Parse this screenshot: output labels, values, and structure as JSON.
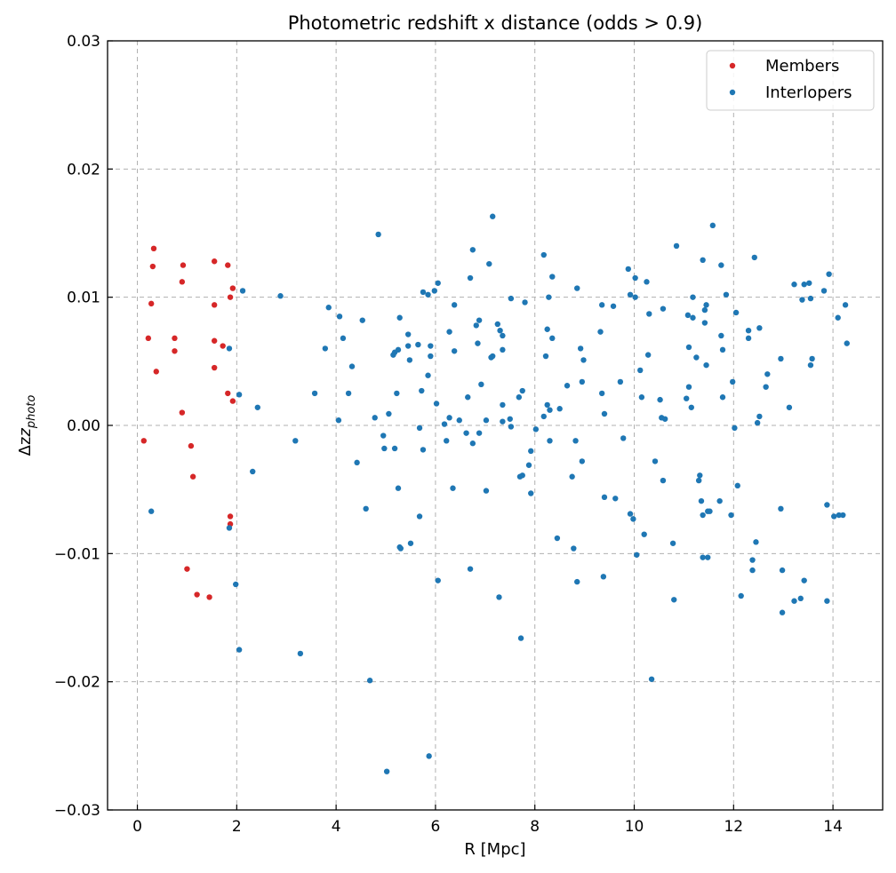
{
  "chart_data": {
    "type": "scatter",
    "title": "Photometric redshift x distance (odds > 0.9)",
    "xlabel": "R [Mpc]",
    "ylabel_main": "Δz",
    "ylabel_sub": "photo",
    "xlim": [
      -0.6,
      15.0
    ],
    "ylim": [
      -0.03,
      0.03
    ],
    "xticks": [
      0,
      2,
      4,
      6,
      8,
      10,
      12,
      14
    ],
    "xtick_labels": [
      "0",
      "2",
      "4",
      "6",
      "8",
      "10",
      "12",
      "14"
    ],
    "yticks": [
      -0.03,
      -0.02,
      -0.01,
      0.0,
      0.01,
      0.02,
      0.03
    ],
    "ytick_labels": [
      "−0.03",
      "−0.02",
      "−0.01",
      "0.00",
      "0.01",
      "0.02",
      "0.03"
    ],
    "grid": true,
    "legend_position": "top-right",
    "series": [
      {
        "name": "Members",
        "color": "#d62728",
        "points": [
          [
            0.13,
            -0.0012
          ],
          [
            0.22,
            0.0068
          ],
          [
            0.28,
            0.0095
          ],
          [
            0.31,
            0.0124
          ],
          [
            0.33,
            0.0138
          ],
          [
            0.38,
            0.0042
          ],
          [
            0.75,
            0.0068
          ],
          [
            0.75,
            0.0058
          ],
          [
            0.9,
            0.0112
          ],
          [
            0.92,
            0.0125
          ],
          [
            0.9,
            0.001
          ],
          [
            1.0,
            -0.0112
          ],
          [
            1.08,
            -0.0016
          ],
          [
            1.12,
            -0.004
          ],
          [
            1.2,
            -0.0132
          ],
          [
            1.45,
            -0.0134
          ],
          [
            1.55,
            0.0128
          ],
          [
            1.55,
            0.0094
          ],
          [
            1.55,
            0.0066
          ],
          [
            1.55,
            0.0045
          ],
          [
            1.72,
            0.0062
          ],
          [
            1.82,
            0.0125
          ],
          [
            1.82,
            0.0025
          ],
          [
            1.87,
            0.01
          ],
          [
            1.92,
            0.0107
          ],
          [
            1.92,
            0.0019
          ],
          [
            1.87,
            -0.0071
          ],
          [
            1.87,
            -0.0077
          ]
        ]
      },
      {
        "name": "Interlopers",
        "color": "#1f77b4",
        "points": [
          [
            0.28,
            -0.0067
          ],
          [
            1.85,
            0.006
          ],
          [
            1.85,
            -0.008
          ],
          [
            1.98,
            -0.0124
          ],
          [
            2.05,
            -0.0175
          ],
          [
            2.05,
            0.0024
          ],
          [
            2.12,
            0.0105
          ],
          [
            2.32,
            -0.0036
          ],
          [
            2.42,
            0.0014
          ],
          [
            2.88,
            0.0101
          ],
          [
            3.18,
            -0.0012
          ],
          [
            3.28,
            -0.0178
          ],
          [
            3.57,
            0.0025
          ],
          [
            3.78,
            0.006
          ],
          [
            3.85,
            0.0092
          ],
          [
            4.05,
            0.0004
          ],
          [
            4.07,
            0.0085
          ],
          [
            4.14,
            0.0068
          ],
          [
            4.25,
            0.0025
          ],
          [
            4.32,
            0.0046
          ],
          [
            4.42,
            -0.0029
          ],
          [
            4.53,
            0.0082
          ],
          [
            4.6,
            -0.0065
          ],
          [
            4.68,
            -0.0199
          ],
          [
            4.78,
            0.0006
          ],
          [
            4.85,
            0.0149
          ],
          [
            4.95,
            -0.0008
          ],
          [
            4.97,
            -0.0018
          ],
          [
            5.02,
            -0.027
          ],
          [
            5.06,
            0.0009
          ],
          [
            5.15,
            0.0055
          ],
          [
            5.18,
            0.0057
          ],
          [
            5.18,
            -0.0018
          ],
          [
            5.22,
            0.0025
          ],
          [
            5.25,
            0.0059
          ],
          [
            5.25,
            -0.0049
          ],
          [
            5.28,
            0.0084
          ],
          [
            5.28,
            -0.0095
          ],
          [
            5.3,
            -0.0096
          ],
          [
            5.45,
            0.0071
          ],
          [
            5.45,
            0.0062
          ],
          [
            5.48,
            0.0051
          ],
          [
            5.5,
            -0.0092
          ],
          [
            5.65,
            0.0063
          ],
          [
            5.68,
            -0.0002
          ],
          [
            5.68,
            -0.0071
          ],
          [
            5.72,
            0.0027
          ],
          [
            5.75,
            0.0104
          ],
          [
            5.75,
            -0.0019
          ],
          [
            5.85,
            0.0102
          ],
          [
            5.85,
            0.0039
          ],
          [
            5.87,
            -0.0258
          ],
          [
            5.9,
            0.0062
          ],
          [
            5.9,
            0.0054
          ],
          [
            5.98,
            0.0105
          ],
          [
            6.02,
            0.0017
          ],
          [
            6.05,
            0.0111
          ],
          [
            6.05,
            -0.0121
          ],
          [
            6.18,
            0.0001
          ],
          [
            6.22,
            -0.0012
          ],
          [
            6.28,
            0.0073
          ],
          [
            6.28,
            0.0006
          ],
          [
            6.35,
            -0.0049
          ],
          [
            6.38,
            0.0094
          ],
          [
            6.38,
            0.0058
          ],
          [
            6.48,
            0.0004
          ],
          [
            6.62,
            -0.0006
          ],
          [
            6.65,
            0.0022
          ],
          [
            6.7,
            0.0115
          ],
          [
            6.7,
            -0.0112
          ],
          [
            6.75,
            0.0137
          ],
          [
            6.75,
            -0.0014
          ],
          [
            6.82,
            0.0078
          ],
          [
            6.85,
            0.0064
          ],
          [
            6.88,
            0.0082
          ],
          [
            6.88,
            -0.0006
          ],
          [
            6.92,
            0.0032
          ],
          [
            7.02,
            0.0004
          ],
          [
            7.02,
            -0.0051
          ],
          [
            7.08,
            0.0126
          ],
          [
            7.12,
            0.0053
          ],
          [
            7.15,
            0.0054
          ],
          [
            7.15,
            0.0163
          ],
          [
            7.25,
            0.0079
          ],
          [
            7.28,
            -0.0134
          ],
          [
            7.3,
            0.0074
          ],
          [
            7.35,
            0.007
          ],
          [
            7.35,
            0.0059
          ],
          [
            7.35,
            0.0016
          ],
          [
            7.35,
            0.0003
          ],
          [
            7.5,
            0.0005
          ],
          [
            7.52,
            0.0099
          ],
          [
            7.52,
            -0.0001
          ],
          [
            7.68,
            0.0022
          ],
          [
            7.7,
            -0.004
          ],
          [
            7.72,
            -0.0166
          ],
          [
            7.75,
            0.0027
          ],
          [
            7.75,
            -0.0039
          ],
          [
            7.8,
            0.0096
          ],
          [
            7.88,
            -0.0031
          ],
          [
            7.92,
            -0.002
          ],
          [
            7.92,
            -0.0053
          ],
          [
            8.02,
            -0.0003
          ],
          [
            8.18,
            0.0133
          ],
          [
            8.18,
            0.0007
          ],
          [
            8.22,
            0.0054
          ],
          [
            8.25,
            0.0075
          ],
          [
            8.25,
            0.0016
          ],
          [
            8.28,
            0.01
          ],
          [
            8.3,
            0.0012
          ],
          [
            8.3,
            -0.0012
          ],
          [
            8.35,
            0.0116
          ],
          [
            8.35,
            0.0068
          ],
          [
            8.45,
            -0.0088
          ],
          [
            8.5,
            0.0013
          ],
          [
            8.65,
            0.0031
          ],
          [
            8.75,
            -0.004
          ],
          [
            8.78,
            -0.0096
          ],
          [
            8.82,
            -0.0012
          ],
          [
            8.85,
            0.0107
          ],
          [
            8.85,
            -0.0122
          ],
          [
            8.92,
            0.006
          ],
          [
            8.95,
            0.0034
          ],
          [
            8.95,
            -0.0028
          ],
          [
            8.98,
            0.0051
          ],
          [
            9.32,
            0.0073
          ],
          [
            9.35,
            0.0094
          ],
          [
            9.35,
            0.0025
          ],
          [
            9.4,
            0.0009
          ],
          [
            9.4,
            -0.0056
          ],
          [
            9.38,
            -0.0118
          ],
          [
            9.58,
            0.0093
          ],
          [
            9.62,
            -0.0057
          ],
          [
            9.72,
            0.0034
          ],
          [
            9.78,
            -0.001
          ],
          [
            9.88,
            0.0122
          ],
          [
            9.92,
            0.0102
          ],
          [
            9.92,
            -0.0069
          ],
          [
            9.98,
            -0.0073
          ],
          [
            10.02,
            0.0115
          ],
          [
            10.02,
            0.01
          ],
          [
            10.05,
            -0.0101
          ],
          [
            10.12,
            0.0043
          ],
          [
            10.15,
            0.0022
          ],
          [
            10.2,
            -0.0085
          ],
          [
            10.25,
            0.0112
          ],
          [
            10.28,
            0.0055
          ],
          [
            10.3,
            0.0087
          ],
          [
            10.35,
            -0.0198
          ],
          [
            10.42,
            -0.0028
          ],
          [
            10.52,
            0.002
          ],
          [
            10.55,
            0.0006
          ],
          [
            10.58,
            0.0091
          ],
          [
            10.58,
            -0.0043
          ],
          [
            10.62,
            0.0005
          ],
          [
            10.78,
            -0.0092
          ],
          [
            10.8,
            -0.0136
          ],
          [
            10.85,
            0.014
          ],
          [
            11.05,
            0.0021
          ],
          [
            11.08,
            0.0086
          ],
          [
            11.1,
            0.0061
          ],
          [
            11.1,
            0.003
          ],
          [
            11.15,
            0.0014
          ],
          [
            11.18,
            0.01
          ],
          [
            11.18,
            0.0084
          ],
          [
            11.25,
            0.0053
          ],
          [
            11.3,
            -0.0043
          ],
          [
            11.32,
            -0.0039
          ],
          [
            11.35,
            -0.0059
          ],
          [
            11.38,
            0.0129
          ],
          [
            11.38,
            -0.007
          ],
          [
            11.38,
            -0.0103
          ],
          [
            11.42,
            0.009
          ],
          [
            11.42,
            0.008
          ],
          [
            11.45,
            0.0094
          ],
          [
            11.45,
            0.0047
          ],
          [
            11.48,
            -0.0067
          ],
          [
            11.48,
            -0.0103
          ],
          [
            11.52,
            -0.0067
          ],
          [
            11.58,
            0.0156
          ],
          [
            11.72,
            -0.0059
          ],
          [
            11.75,
            0.0125
          ],
          [
            11.75,
            0.007
          ],
          [
            11.78,
            0.0059
          ],
          [
            11.78,
            0.0022
          ],
          [
            11.85,
            0.0102
          ],
          [
            11.95,
            -0.007
          ],
          [
            11.98,
            0.0034
          ],
          [
            12.02,
            -0.0002
          ],
          [
            12.05,
            0.0088
          ],
          [
            12.08,
            -0.0047
          ],
          [
            12.15,
            -0.0133
          ],
          [
            12.3,
            0.0074
          ],
          [
            12.3,
            0.0068
          ],
          [
            12.38,
            -0.0113
          ],
          [
            12.38,
            -0.0105
          ],
          [
            12.42,
            0.0131
          ],
          [
            12.45,
            -0.0091
          ],
          [
            12.48,
            0.0002
          ],
          [
            12.52,
            0.0076
          ],
          [
            12.52,
            0.0007
          ],
          [
            12.65,
            0.003
          ],
          [
            12.68,
            0.004
          ],
          [
            12.95,
            0.0052
          ],
          [
            12.95,
            -0.0065
          ],
          [
            12.98,
            -0.0113
          ],
          [
            12.98,
            -0.0146
          ],
          [
            13.12,
            0.0014
          ],
          [
            13.22,
            0.011
          ],
          [
            13.22,
            -0.0137
          ],
          [
            13.35,
            -0.0135
          ],
          [
            13.38,
            0.0098
          ],
          [
            13.42,
            0.011
          ],
          [
            13.42,
            -0.0121
          ],
          [
            13.52,
            0.0111
          ],
          [
            13.55,
            0.0099
          ],
          [
            13.55,
            0.0047
          ],
          [
            13.58,
            0.0052
          ],
          [
            13.82,
            0.0105
          ],
          [
            13.88,
            -0.0062
          ],
          [
            13.88,
            -0.0137
          ],
          [
            13.92,
            0.0118
          ],
          [
            14.02,
            -0.0071
          ],
          [
            14.1,
            0.0084
          ],
          [
            14.12,
            -0.007
          ],
          [
            14.2,
            -0.007
          ],
          [
            14.25,
            0.0094
          ],
          [
            14.28,
            0.0064
          ]
        ]
      }
    ]
  }
}
